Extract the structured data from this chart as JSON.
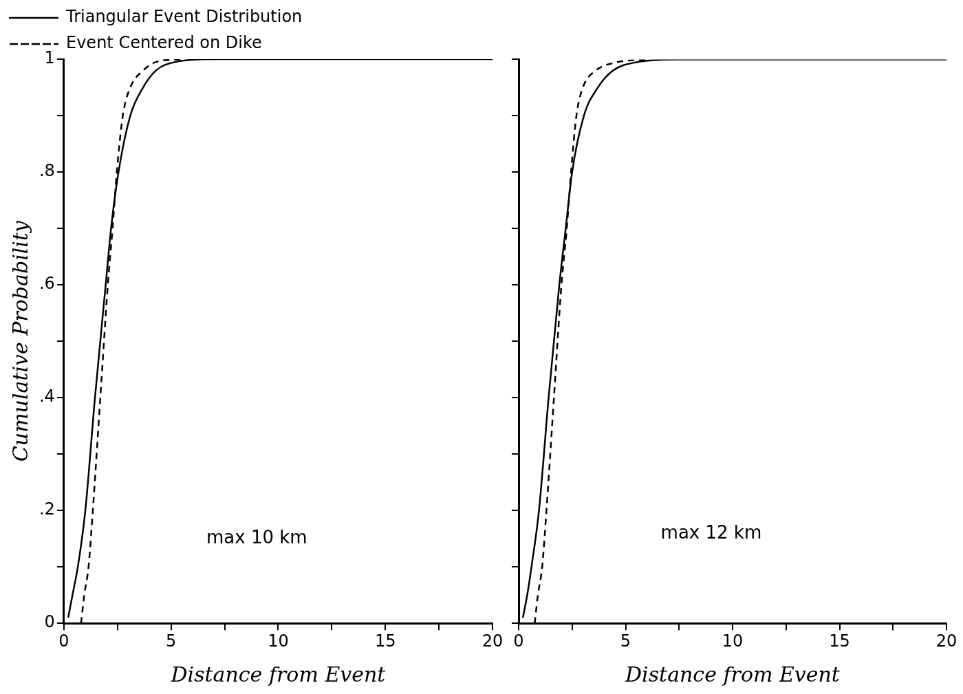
{
  "chart_data": [
    {
      "type": "line",
      "xlabel": "Distance from Event",
      "ylabel": "Cumulative Probability",
      "annotations": [
        "max 10 km"
      ],
      "xlim": [
        0,
        20
      ],
      "ylim": [
        0,
        1
      ],
      "xticks": [
        0,
        {
          "value": 2.5,
          "label": null
        },
        5,
        {
          "value": 7.5,
          "label": null
        },
        10,
        {
          "value": 12.5,
          "label": null
        },
        15,
        {
          "value": 17.5,
          "label": null
        },
        20
      ],
      "yticks": [
        0,
        {
          "value": 0.1,
          "label": null
        },
        {
          "value": 0.2,
          "label": ".2"
        },
        {
          "value": 0.3,
          "label": null
        },
        {
          "value": 0.4,
          "label": ".4"
        },
        {
          "value": 0.5,
          "label": null
        },
        {
          "value": 0.6,
          "label": ".6"
        },
        {
          "value": 0.7,
          "label": null
        },
        {
          "value": 0.8,
          "label": ".8"
        },
        {
          "value": 0.9,
          "label": null
        },
        1
      ],
      "grid": false,
      "legend": "top left",
      "marker": "none",
      "series": [
        {
          "name": "Triangular Event Distribution",
          "color": "#000000",
          "line_style": "solid",
          "x": [
            0.2,
            0.4,
            0.65,
            1.0,
            1.45,
            1.95,
            2.2,
            2.55,
            3.1,
            3.7,
            4.3,
            5.2,
            7,
            20
          ],
          "values": [
            0.01,
            0.05,
            0.1,
            0.2,
            0.4,
            0.6,
            0.7,
            0.8,
            0.9,
            0.95,
            0.98,
            0.995,
            1,
            1
          ]
        },
        {
          "name": "Event Centered on Dike",
          "color": "#000000",
          "line_style": "dashed",
          "x": [
            0.8,
            0.95,
            1.15,
            1.35,
            1.7,
            2.05,
            2.27,
            2.47,
            2.75,
            3.1,
            3.7,
            4.3,
            5.5
          ],
          "values": [
            0,
            0.05,
            0.1,
            0.2,
            0.4,
            0.6,
            0.7,
            0.8,
            0.9,
            0.95,
            0.98,
            0.995,
            1
          ]
        }
      ]
    },
    {
      "type": "line",
      "xlabel": "Distance from Event",
      "annotations": [
        "max 12 km"
      ],
      "xlim": [
        0,
        20
      ],
      "ylim": [
        0,
        1
      ],
      "xticks": [
        0,
        {
          "value": 2.5,
          "label": null
        },
        5,
        {
          "value": 7.5,
          "label": null
        },
        10,
        {
          "value": 12.5,
          "label": null
        },
        15,
        {
          "value": 17.5,
          "label": null
        },
        20
      ],
      "yticks": [
        0,
        0.1,
        0.2,
        0.3,
        0.4,
        0.5,
        0.6,
        0.7,
        0.8,
        0.9,
        1
      ],
      "tick_labels": "x",
      "grid": false,
      "marker": "none",
      "series": [
        {
          "color": "#000000",
          "line_style": "solid",
          "x": [
            0.2,
            0.4,
            0.6,
            0.95,
            1.4,
            1.9,
            2.2,
            2.5,
            3.05,
            3.7,
            4.4,
            5.5,
            7.5,
            20
          ],
          "values": [
            0.01,
            0.05,
            0.1,
            0.2,
            0.4,
            0.6,
            0.7,
            0.8,
            0.9,
            0.95,
            0.98,
            0.995,
            1,
            1
          ]
        },
        {
          "color": "#000000",
          "line_style": "dashed",
          "x": [
            0.75,
            0.9,
            1.1,
            1.3,
            1.65,
            2.0,
            2.25,
            2.45,
            2.7,
            3.0,
            3.6,
            4.6,
            6
          ],
          "values": [
            0,
            0.05,
            0.1,
            0.2,
            0.4,
            0.6,
            0.7,
            0.8,
            0.9,
            0.95,
            0.98,
            0.995,
            1
          ]
        }
      ]
    }
  ]
}
